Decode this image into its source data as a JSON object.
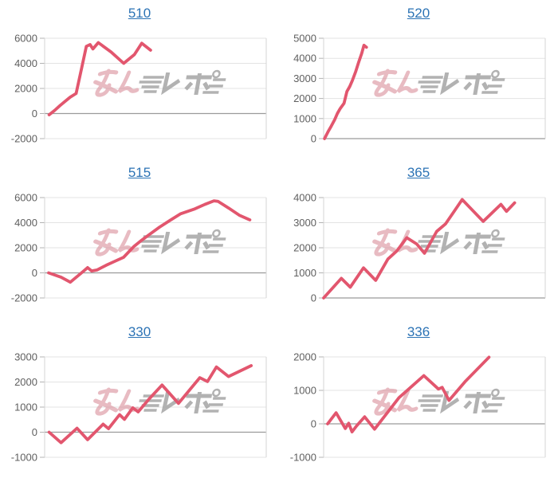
{
  "page": {
    "background": "#ffffff",
    "description_visible_text_only": "grid of six slot data line charts with linked machine numbers"
  },
  "style": {
    "line_color": "#e2566e",
    "title_color": "#2c73b5",
    "label_color": "#5f5f5f",
    "grid_color": "#e3e3e3",
    "zero_line_color": "#9b9b9b",
    "axis_color": "#d6d6d6",
    "tick_color": "#b3b3b3",
    "watermark_pink": "#d98e9a",
    "watermark_gray": "#a5a5a5"
  },
  "watermark": {
    "text": "みんレポ",
    "icon": "minrepo-logo-watermark"
  },
  "chart_data": [
    {
      "type": "line",
      "title": "510",
      "y_ticks": [
        6000,
        4000,
        2000,
        0,
        -2000
      ],
      "ylim": [
        -2000,
        6000
      ],
      "grid": true,
      "legend": false,
      "xlabel": "",
      "ylabel": "",
      "points": [
        [
          0.02,
          -100
        ],
        [
          0.045,
          250
        ],
        [
          0.07,
          650
        ],
        [
          0.115,
          1300
        ],
        [
          0.142,
          1600
        ],
        [
          0.168,
          3700
        ],
        [
          0.188,
          5350
        ],
        [
          0.205,
          5500
        ],
        [
          0.218,
          5150
        ],
        [
          0.242,
          5650
        ],
        [
          0.3,
          4900
        ],
        [
          0.357,
          4000
        ],
        [
          0.405,
          4700
        ],
        [
          0.438,
          5600
        ],
        [
          0.478,
          5050
        ]
      ]
    },
    {
      "type": "line",
      "title": "520",
      "y_ticks": [
        5000,
        4000,
        3000,
        2000,
        1000,
        0
      ],
      "ylim": [
        0,
        5000
      ],
      "grid": true,
      "legend": false,
      "xlabel": "",
      "ylabel": "",
      "points": [
        [
          0.004,
          0
        ],
        [
          0.02,
          350
        ],
        [
          0.034,
          620
        ],
        [
          0.05,
          950
        ],
        [
          0.062,
          1250
        ],
        [
          0.075,
          1500
        ],
        [
          0.092,
          1760
        ],
        [
          0.105,
          2350
        ],
        [
          0.118,
          2600
        ],
        [
          0.13,
          2900
        ],
        [
          0.145,
          3350
        ],
        [
          0.158,
          3800
        ],
        [
          0.172,
          4250
        ],
        [
          0.182,
          4650
        ],
        [
          0.193,
          4550
        ]
      ]
    },
    {
      "type": "line",
      "title": "515",
      "y_ticks": [
        6000,
        4000,
        2000,
        0,
        -2000
      ],
      "ylim": [
        -2000,
        6000
      ],
      "grid": true,
      "legend": false,
      "xlabel": "",
      "ylabel": "",
      "points": [
        [
          0.018,
          0
        ],
        [
          0.074,
          -340
        ],
        [
          0.116,
          -740
        ],
        [
          0.172,
          80
        ],
        [
          0.194,
          420
        ],
        [
          0.212,
          150
        ],
        [
          0.236,
          230
        ],
        [
          0.278,
          610
        ],
        [
          0.314,
          900
        ],
        [
          0.356,
          1240
        ],
        [
          0.404,
          2120
        ],
        [
          0.434,
          2550
        ],
        [
          0.47,
          3025
        ],
        [
          0.518,
          3640
        ],
        [
          0.566,
          4185
        ],
        [
          0.614,
          4710
        ],
        [
          0.674,
          5070
        ],
        [
          0.722,
          5450
        ],
        [
          0.764,
          5740
        ],
        [
          0.782,
          5700
        ],
        [
          0.83,
          5170
        ],
        [
          0.878,
          4600
        ],
        [
          0.926,
          4220
        ]
      ]
    },
    {
      "type": "line",
      "title": "365",
      "y_ticks": [
        4000,
        3000,
        2000,
        1000,
        0
      ],
      "ylim": [
        0,
        4000
      ],
      "grid": true,
      "legend": false,
      "xlabel": "",
      "ylabel": "",
      "points": [
        [
          0.0,
          0
        ],
        [
          0.08,
          780
        ],
        [
          0.12,
          430
        ],
        [
          0.18,
          1200
        ],
        [
          0.235,
          700
        ],
        [
          0.29,
          1550
        ],
        [
          0.33,
          1870
        ],
        [
          0.375,
          2400
        ],
        [
          0.42,
          2150
        ],
        [
          0.455,
          1780
        ],
        [
          0.51,
          2650
        ],
        [
          0.55,
          2950
        ],
        [
          0.585,
          3400
        ],
        [
          0.625,
          3920
        ],
        [
          0.72,
          3050
        ],
        [
          0.8,
          3730
        ],
        [
          0.825,
          3450
        ],
        [
          0.862,
          3790
        ]
      ]
    },
    {
      "type": "line",
      "title": "330",
      "y_ticks": [
        3000,
        2000,
        1000,
        0,
        -1000
      ],
      "ylim": [
        -1000,
        3000
      ],
      "grid": true,
      "legend": false,
      "xlabel": "",
      "ylabel": "",
      "points": [
        [
          0.02,
          0
        ],
        [
          0.074,
          -420
        ],
        [
          0.146,
          160
        ],
        [
          0.194,
          -300
        ],
        [
          0.264,
          320
        ],
        [
          0.288,
          140
        ],
        [
          0.338,
          700
        ],
        [
          0.36,
          510
        ],
        [
          0.398,
          970
        ],
        [
          0.422,
          810
        ],
        [
          0.47,
          1310
        ],
        [
          0.53,
          1880
        ],
        [
          0.604,
          1150
        ],
        [
          0.7,
          2170
        ],
        [
          0.735,
          2020
        ],
        [
          0.775,
          2600
        ],
        [
          0.83,
          2220
        ],
        [
          0.932,
          2650
        ]
      ]
    },
    {
      "type": "line",
      "title": "336",
      "y_ticks": [
        2000,
        1000,
        0,
        -1000
      ],
      "ylim": [
        -1000,
        2000
      ],
      "grid": true,
      "legend": false,
      "xlabel": "",
      "ylabel": "",
      "points": [
        [
          0.018,
          0
        ],
        [
          0.056,
          330
        ],
        [
          0.098,
          -140
        ],
        [
          0.113,
          20
        ],
        [
          0.128,
          -240
        ],
        [
          0.149,
          -60
        ],
        [
          0.185,
          210
        ],
        [
          0.23,
          -160
        ],
        [
          0.34,
          780
        ],
        [
          0.452,
          1440
        ],
        [
          0.518,
          1040
        ],
        [
          0.535,
          1090
        ],
        [
          0.566,
          700
        ],
        [
          0.638,
          1260
        ],
        [
          0.746,
          1990
        ]
      ]
    }
  ]
}
